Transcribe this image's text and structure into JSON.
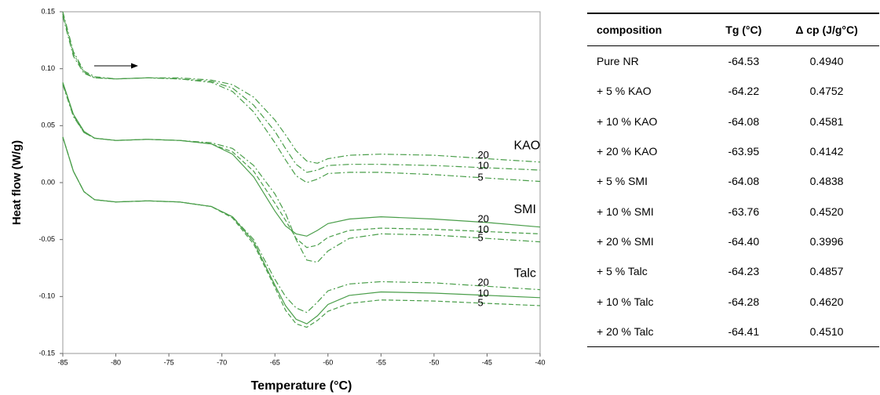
{
  "chart_data": {
    "type": "line",
    "xlabel": "Temperature (°C)",
    "ylabel": "Heat flow (W/g)",
    "xlim": [
      -85,
      -40
    ],
    "xticks": [
      -85,
      -80,
      -75,
      -70,
      -65,
      -60,
      -55,
      -50,
      -45,
      -40
    ],
    "ylim": [
      -0.15,
      0.15
    ],
    "yticks": [
      -0.15,
      {
        "value": -0.1,
        "label": "-0.10"
      },
      -0.05,
      {
        "value": 0,
        "label": "0.00"
      },
      0.05,
      {
        "value": 0.1,
        "label": "0.10"
      },
      0.15
    ],
    "x": [
      -85,
      -84,
      -83,
      -82,
      -80,
      -77,
      -74,
      -71,
      -69,
      -67,
      -65,
      -64,
      -63,
      -62,
      -61,
      -60,
      -58,
      -55,
      -50,
      -45,
      -40
    ],
    "groups": [
      {
        "name": "KAO",
        "series": [
          {
            "name": "20",
            "color": "#4a9e4a",
            "dash": "dash-dot",
            "values": [
              0.146,
              0.111,
              0.096,
              0.092,
              0.091,
              0.092,
              0.092,
              0.09,
              0.086,
              0.075,
              0.055,
              0.042,
              0.028,
              0.019,
              0.017,
              0.021,
              0.024,
              0.025,
              0.024,
              0.021,
              0.018
            ]
          },
          {
            "name": "10",
            "color": "#4a9e4a",
            "dash": "dash-dot",
            "values": [
              0.148,
              0.113,
              0.097,
              0.092,
              0.091,
              0.092,
              0.091,
              0.089,
              0.083,
              0.068,
              0.045,
              0.03,
              0.016,
              0.009,
              0.011,
              0.015,
              0.016,
              0.016,
              0.015,
              0.013,
              0.011
            ]
          },
          {
            "name": "5",
            "color": "#4a9e4a",
            "dash": "dash-dot",
            "values": [
              0.15,
              0.115,
              0.098,
              0.093,
              0.091,
              0.092,
              0.091,
              0.088,
              0.08,
              0.062,
              0.035,
              0.02,
              0.006,
              0.0,
              0.003,
              0.008,
              0.009,
              0.009,
              0.007,
              0.004,
              0.001
            ]
          }
        ]
      },
      {
        "name": "SMI",
        "series": [
          {
            "name": "20",
            "color": "#4a9e4a",
            "dash": "solid",
            "values": [
              0.088,
              0.06,
              0.045,
              0.039,
              0.037,
              0.038,
              0.037,
              0.034,
              0.025,
              0.005,
              -0.025,
              -0.038,
              -0.045,
              -0.047,
              -0.042,
              -0.036,
              -0.032,
              -0.03,
              -0.032,
              -0.035,
              -0.039
            ]
          },
          {
            "name": "10",
            "color": "#4a9e4a",
            "dash": "dash",
            "values": [
              0.087,
              0.059,
              0.044,
              0.039,
              0.037,
              0.038,
              0.037,
              0.034,
              0.027,
              0.01,
              -0.018,
              -0.033,
              -0.049,
              -0.057,
              -0.055,
              -0.048,
              -0.042,
              -0.04,
              -0.041,
              -0.043,
              -0.045
            ]
          },
          {
            "name": "5",
            "color": "#4a9e4a",
            "dash": "dash-dot",
            "values": [
              0.086,
              0.058,
              0.044,
              0.039,
              0.037,
              0.038,
              0.037,
              0.035,
              0.03,
              0.015,
              -0.01,
              -0.027,
              -0.05,
              -0.068,
              -0.07,
              -0.06,
              -0.049,
              -0.045,
              -0.046,
              -0.049,
              -0.052
            ]
          }
        ]
      },
      {
        "name": "Talc",
        "series": [
          {
            "name": "20",
            "color": "#4a9e4a",
            "dash": "dash-dot",
            "values": [
              0.04,
              0.01,
              -0.008,
              -0.015,
              -0.017,
              -0.016,
              -0.017,
              -0.021,
              -0.03,
              -0.05,
              -0.085,
              -0.1,
              -0.11,
              -0.114,
              -0.105,
              -0.095,
              -0.089,
              -0.087,
              -0.088,
              -0.091,
              -0.094
            ]
          },
          {
            "name": "10",
            "color": "#4a9e4a",
            "dash": "solid",
            "values": [
              0.04,
              0.01,
              -0.008,
              -0.015,
              -0.017,
              -0.016,
              -0.017,
              -0.021,
              -0.03,
              -0.052,
              -0.09,
              -0.108,
              -0.12,
              -0.124,
              -0.117,
              -0.107,
              -0.099,
              -0.096,
              -0.097,
              -0.099,
              -0.101
            ]
          },
          {
            "name": "5",
            "color": "#4a9e4a",
            "dash": "dash",
            "values": [
              0.04,
              0.01,
              -0.008,
              -0.015,
              -0.017,
              -0.016,
              -0.017,
              -0.021,
              -0.031,
              -0.054,
              -0.092,
              -0.112,
              -0.124,
              -0.127,
              -0.121,
              -0.113,
              -0.106,
              -0.103,
              -0.104,
              -0.106,
              -0.108
            ]
          }
        ]
      }
    ]
  },
  "table": {
    "columns": [
      "composition",
      "Tg (°C)",
      "Δ cp (J/g°C)"
    ],
    "rows": [
      [
        "Pure NR",
        "-64.53",
        "0.4940"
      ],
      [
        "+ 5 % KAO",
        "-64.22",
        "0.4752"
      ],
      [
        "+ 10 % KAO",
        "-64.08",
        "0.4581"
      ],
      [
        "+ 20 % KAO",
        "-63.95",
        "0.4142"
      ],
      [
        "+ 5 % SMI",
        "-64.08",
        "0.4838"
      ],
      [
        "+ 10 % SMI",
        "-63.76",
        "0.4520"
      ],
      [
        "+ 20 % SMI",
        "-64.40",
        "0.3996"
      ],
      [
        "+ 5 % Talc",
        "-64.23",
        "0.4857"
      ],
      [
        "+ 10 % Talc",
        "-64.28",
        "0.4620"
      ],
      [
        "+ 20 % Talc",
        "-64.41",
        "0.4510"
      ]
    ]
  }
}
